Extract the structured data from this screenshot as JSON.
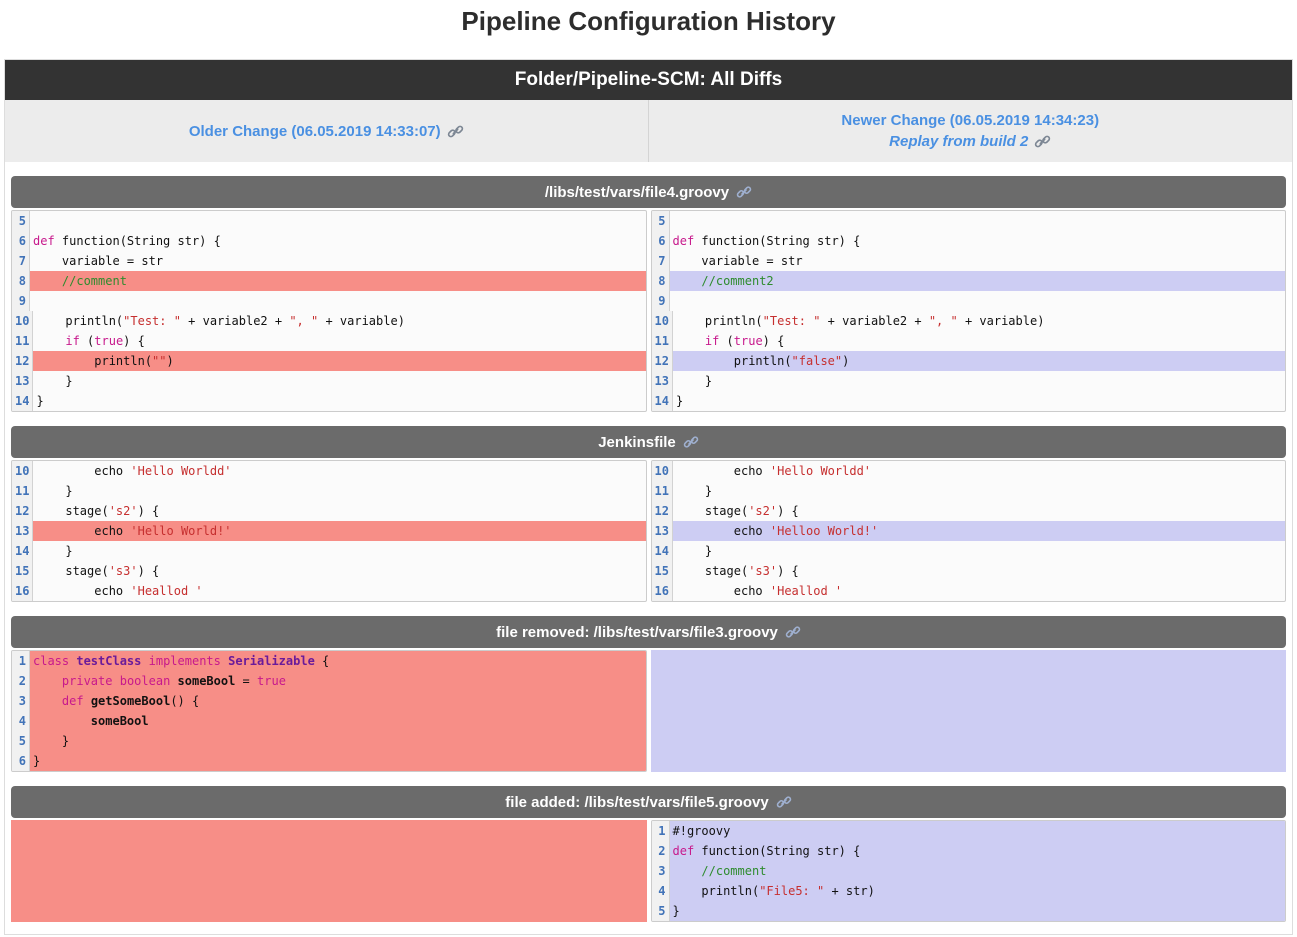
{
  "page_title": "Pipeline Configuration History",
  "header": {
    "title": "Folder/Pipeline-SCM: All Diffs"
  },
  "subheader": {
    "older_label": "Older Change (06.05.2019 14:33:07)",
    "newer_label": "Newer Change (06.05.2019 14:34:23)",
    "replay_label": "Replay from build 2"
  },
  "colors": {
    "link_blue": "#4a90e2",
    "dark_bar_bg": "#333333",
    "section_header_bg": "#6b6b6b",
    "removed_bg": "#f78e87",
    "added_bg": "#cdcdf3",
    "line_number_blue": "#4173b8",
    "keyword": "#c7198c",
    "string": "#c62f2f",
    "comment": "#2e8b2e",
    "type": "#6a1b9a"
  },
  "icons": {
    "link": "chain-link-icon"
  },
  "sections": [
    {
      "title": "/libs/test/vars/file4.groovy",
      "left": {
        "kind": "code",
        "lines": [
          {
            "n": 5,
            "hl": "",
            "toks": []
          },
          {
            "n": 6,
            "hl": "",
            "toks": [
              [
                "k",
                "def"
              ],
              [
                "p",
                " function(String str) {"
              ]
            ]
          },
          {
            "n": 7,
            "hl": "",
            "toks": [
              [
                "p",
                "    variable = str"
              ]
            ]
          },
          {
            "n": 8,
            "hl": "r",
            "toks": [
              [
                "p",
                "    "
              ],
              [
                "c",
                "//comment"
              ]
            ]
          },
          {
            "n": 9,
            "hl": "",
            "toks": []
          },
          {
            "n": 10,
            "hl": "",
            "toks": [
              [
                "p",
                "    println("
              ],
              [
                "s",
                "\"Test: \""
              ],
              [
                "p",
                " + variable2 + "
              ],
              [
                "s",
                "\", \""
              ],
              [
                "p",
                " + variable)"
              ]
            ]
          },
          {
            "n": 11,
            "hl": "",
            "toks": [
              [
                "p",
                "    "
              ],
              [
                "k",
                "if"
              ],
              [
                "p",
                " ("
              ],
              [
                "k",
                "true"
              ],
              [
                "p",
                ") {"
              ]
            ]
          },
          {
            "n": 12,
            "hl": "r",
            "toks": [
              [
                "p",
                "        println("
              ],
              [
                "s",
                "\"\""
              ],
              [
                "p",
                ")"
              ]
            ]
          },
          {
            "n": 13,
            "hl": "",
            "toks": [
              [
                "p",
                "    }"
              ]
            ]
          },
          {
            "n": 14,
            "hl": "",
            "toks": [
              [
                "p",
                "}"
              ]
            ]
          }
        ]
      },
      "right": {
        "kind": "code",
        "lines": [
          {
            "n": 5,
            "hl": "",
            "toks": []
          },
          {
            "n": 6,
            "hl": "",
            "toks": [
              [
                "k",
                "def"
              ],
              [
                "p",
                " function(String str) {"
              ]
            ]
          },
          {
            "n": 7,
            "hl": "",
            "toks": [
              [
                "p",
                "    variable = str"
              ]
            ]
          },
          {
            "n": 8,
            "hl": "a",
            "toks": [
              [
                "p",
                "    "
              ],
              [
                "c",
                "//comment2"
              ]
            ]
          },
          {
            "n": 9,
            "hl": "",
            "toks": []
          },
          {
            "n": 10,
            "hl": "",
            "toks": [
              [
                "p",
                "    println("
              ],
              [
                "s",
                "\"Test: \""
              ],
              [
                "p",
                " + variable2 + "
              ],
              [
                "s",
                "\", \""
              ],
              [
                "p",
                " + variable)"
              ]
            ]
          },
          {
            "n": 11,
            "hl": "",
            "toks": [
              [
                "p",
                "    "
              ],
              [
                "k",
                "if"
              ],
              [
                "p",
                " ("
              ],
              [
                "k",
                "true"
              ],
              [
                "p",
                ") {"
              ]
            ]
          },
          {
            "n": 12,
            "hl": "a",
            "toks": [
              [
                "p",
                "        println("
              ],
              [
                "s",
                "\"false\""
              ],
              [
                "p",
                ")"
              ]
            ]
          },
          {
            "n": 13,
            "hl": "",
            "toks": [
              [
                "p",
                "    }"
              ]
            ]
          },
          {
            "n": 14,
            "hl": "",
            "toks": [
              [
                "p",
                "}"
              ]
            ]
          }
        ]
      }
    },
    {
      "title": "Jenkinsfile",
      "left": {
        "kind": "code",
        "lines": [
          {
            "n": 10,
            "hl": "",
            "toks": [
              [
                "p",
                "        echo "
              ],
              [
                "s",
                "'Hello Worldd'"
              ]
            ]
          },
          {
            "n": 11,
            "hl": "",
            "toks": [
              [
                "p",
                "    }"
              ]
            ]
          },
          {
            "n": 12,
            "hl": "",
            "toks": [
              [
                "p",
                "    stage("
              ],
              [
                "s",
                "'s2'"
              ],
              [
                "p",
                ") {"
              ]
            ]
          },
          {
            "n": 13,
            "hl": "r",
            "toks": [
              [
                "p",
                "        echo "
              ],
              [
                "s",
                "'Hello World!'"
              ]
            ]
          },
          {
            "n": 14,
            "hl": "",
            "toks": [
              [
                "p",
                "    }"
              ]
            ]
          },
          {
            "n": 15,
            "hl": "",
            "toks": [
              [
                "p",
                "    stage("
              ],
              [
                "s",
                "'s3'"
              ],
              [
                "p",
                ") {"
              ]
            ]
          },
          {
            "n": 16,
            "hl": "",
            "toks": [
              [
                "p",
                "        echo "
              ],
              [
                "s",
                "'Heallod '"
              ]
            ]
          }
        ]
      },
      "right": {
        "kind": "code",
        "lines": [
          {
            "n": 10,
            "hl": "",
            "toks": [
              [
                "p",
                "        echo "
              ],
              [
                "s",
                "'Hello Worldd'"
              ]
            ]
          },
          {
            "n": 11,
            "hl": "",
            "toks": [
              [
                "p",
                "    }"
              ]
            ]
          },
          {
            "n": 12,
            "hl": "",
            "toks": [
              [
                "p",
                "    stage("
              ],
              [
                "s",
                "'s2'"
              ],
              [
                "p",
                ") {"
              ]
            ]
          },
          {
            "n": 13,
            "hl": "a",
            "toks": [
              [
                "p",
                "        echo "
              ],
              [
                "s",
                "'Helloo World!'"
              ]
            ]
          },
          {
            "n": 14,
            "hl": "",
            "toks": [
              [
                "p",
                "    }"
              ]
            ]
          },
          {
            "n": 15,
            "hl": "",
            "toks": [
              [
                "p",
                "    stage("
              ],
              [
                "s",
                "'s3'"
              ],
              [
                "p",
                ") {"
              ]
            ]
          },
          {
            "n": 16,
            "hl": "",
            "toks": [
              [
                "p",
                "        echo "
              ],
              [
                "s",
                "'Heallod '"
              ]
            ]
          }
        ]
      }
    },
    {
      "title": "file removed: /libs/test/vars/file3.groovy",
      "left": {
        "kind": "code",
        "lines": [
          {
            "n": 1,
            "hl": "r",
            "toks": [
              [
                "k",
                "class"
              ],
              [
                "p",
                " "
              ],
              [
                "t",
                "testClass"
              ],
              [
                "p",
                " "
              ],
              [
                "k",
                "implements"
              ],
              [
                "p",
                " "
              ],
              [
                "t",
                "Serializable"
              ],
              [
                "p",
                " {"
              ]
            ]
          },
          {
            "n": 2,
            "hl": "r",
            "toks": [
              [
                "p",
                "    "
              ],
              [
                "k",
                "private"
              ],
              [
                "p",
                " "
              ],
              [
                "k",
                "boolean"
              ],
              [
                "p",
                " "
              ],
              [
                "b",
                "someBool"
              ],
              [
                "p",
                " = "
              ],
              [
                "k",
                "true"
              ]
            ]
          },
          {
            "n": 3,
            "hl": "r",
            "toks": [
              [
                "p",
                "    "
              ],
              [
                "k",
                "def"
              ],
              [
                "p",
                " "
              ],
              [
                "b",
                "getSomeBool"
              ],
              [
                "p",
                "() {"
              ]
            ]
          },
          {
            "n": 4,
            "hl": "r",
            "toks": [
              [
                "p",
                "        "
              ],
              [
                "b",
                "someBool"
              ]
            ]
          },
          {
            "n": 5,
            "hl": "r",
            "toks": [
              [
                "p",
                "    }"
              ]
            ]
          },
          {
            "n": 6,
            "hl": "r",
            "toks": [
              [
                "p",
                "}"
              ]
            ]
          }
        ]
      },
      "right": {
        "kind": "fill",
        "hl": "a"
      }
    },
    {
      "title": "file added: /libs/test/vars/file5.groovy",
      "left": {
        "kind": "fill",
        "hl": "r"
      },
      "right": {
        "kind": "code",
        "lines": [
          {
            "n": 1,
            "hl": "a",
            "toks": [
              [
                "p",
                "#!groovy"
              ]
            ]
          },
          {
            "n": 2,
            "hl": "a",
            "toks": [
              [
                "k",
                "def"
              ],
              [
                "p",
                " function(String str) {"
              ]
            ]
          },
          {
            "n": 3,
            "hl": "a",
            "toks": [
              [
                "p",
                "    "
              ],
              [
                "c",
                "//comment"
              ]
            ]
          },
          {
            "n": 4,
            "hl": "a",
            "toks": [
              [
                "p",
                "    println("
              ],
              [
                "s",
                "\"File5: \""
              ],
              [
                "p",
                " + str)"
              ]
            ]
          },
          {
            "n": 5,
            "hl": "a",
            "toks": [
              [
                "p",
                "}"
              ]
            ]
          }
        ]
      }
    }
  ]
}
